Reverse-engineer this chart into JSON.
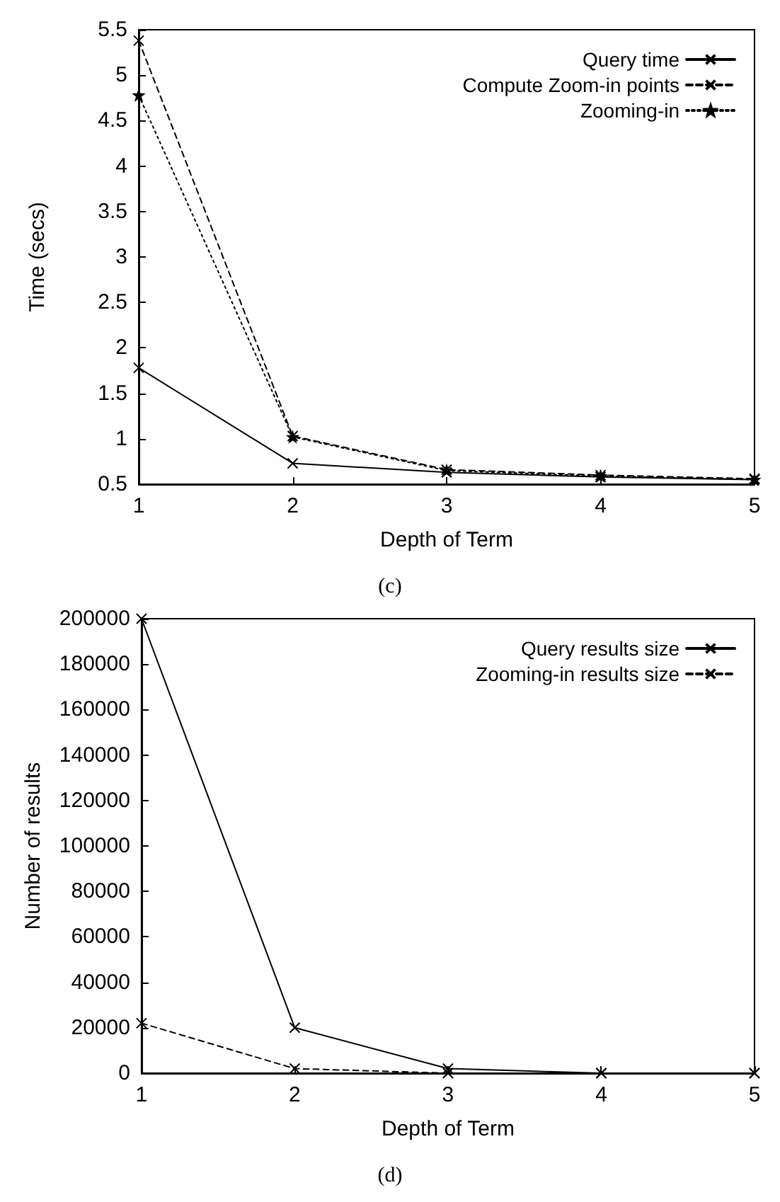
{
  "chart_data": [
    {
      "type": "line",
      "xlabel": "Depth of Term",
      "ylabel": "Time (secs)",
      "annotations": [
        "(c)"
      ],
      "x": [
        1,
        2,
        3,
        4,
        5
      ],
      "xlim": [
        1,
        5
      ],
      "xticks": [
        1,
        2,
        3,
        4,
        5
      ],
      "ylim": [
        0.5,
        5.5
      ],
      "yticks": [
        0.5,
        1,
        1.5,
        2,
        2.5,
        3,
        3.5,
        4,
        4.5,
        5,
        5.5
      ],
      "grid": false,
      "legend": "top right",
      "series": [
        {
          "name": "Query time",
          "color": "#000000",
          "values": [
            1.78,
            0.73,
            0.63,
            0.58,
            0.55
          ],
          "marker": "cross",
          "line_style": "solid"
        },
        {
          "name": "Compute Zoom-in points",
          "color": "#000000",
          "values": [
            5.38,
            1.03,
            0.66,
            0.6,
            0.56
          ],
          "marker": "cross",
          "line_style": "dashed"
        },
        {
          "name": "Zooming-in",
          "color": "#000000",
          "values": [
            4.78,
            1.02,
            0.65,
            0.59,
            0.55
          ],
          "marker": "star",
          "line_style": "dotted"
        }
      ]
    },
    {
      "type": "line",
      "xlabel": "Depth of Term",
      "ylabel": "Number of results",
      "annotations": [
        "(d)"
      ],
      "x": [
        1,
        2,
        3,
        4,
        5
      ],
      "xlim": [
        1,
        5
      ],
      "xticks": [
        1,
        2,
        3,
        4,
        5
      ],
      "ylim": [
        0,
        200000
      ],
      "yticks": [
        0,
        20000,
        40000,
        60000,
        80000,
        100000,
        120000,
        140000,
        160000,
        180000,
        200000
      ],
      "grid": false,
      "legend": "top right",
      "series": [
        {
          "name": "Query results size",
          "color": "#000000",
          "values": [
            200000,
            20000,
            2000,
            0,
            0
          ],
          "marker": "cross",
          "line_style": "solid"
        },
        {
          "name": "Zooming-in results size",
          "color": "#000000",
          "values": [
            22000,
            2000,
            0,
            0,
            0
          ],
          "marker": "cross",
          "line_style": "dashed"
        }
      ]
    }
  ]
}
